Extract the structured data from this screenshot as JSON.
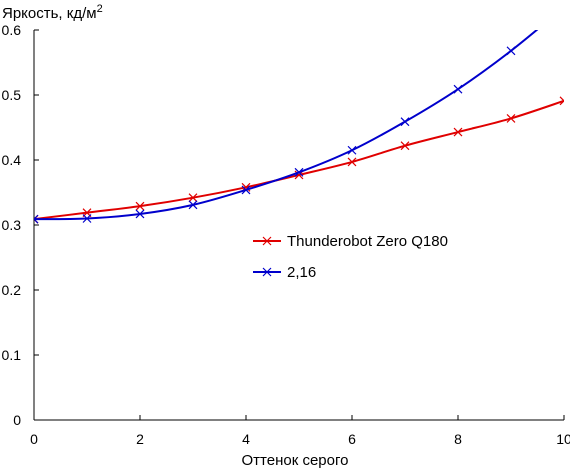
{
  "chart_data": {
    "type": "line",
    "title": "",
    "xlabel": "Оттенок серого",
    "ylabel": "Яркость, кд/м",
    "ylabel_sup": "2",
    "xlim": [
      0,
      10
    ],
    "ylim": [
      0,
      0.6
    ],
    "x_ticks": [
      "0",
      "2",
      "4",
      "6",
      "8",
      "10"
    ],
    "y_ticks": [
      "0",
      "0.1",
      "0.2",
      "0.3",
      "0.4",
      "0.5",
      "0.6"
    ],
    "x_tick_values": [
      0,
      2,
      4,
      6,
      8,
      10
    ],
    "y_tick_values": [
      0,
      0.1,
      0.2,
      0.3,
      0.4,
      0.5,
      0.6
    ],
    "grid": false,
    "legend_position": "center-right",
    "series": [
      {
        "name": "Thunderobot Zero Q180",
        "color": "#e00000",
        "marker": "x",
        "x": [
          0,
          1,
          2,
          3,
          4,
          5,
          6,
          7,
          8,
          9,
          10
        ],
        "y": [
          0.309,
          0.319,
          0.329,
          0.342,
          0.358,
          0.377,
          0.397,
          0.422,
          0.443,
          0.464,
          0.491
        ]
      },
      {
        "name": "2,16",
        "color": "#0000cc",
        "marker": "x",
        "x": [
          0,
          1,
          2,
          3,
          4,
          5,
          6,
          7,
          8,
          9,
          10
        ],
        "y": [
          0.309,
          0.31,
          0.317,
          0.331,
          0.354,
          0.381,
          0.415,
          0.459,
          0.509,
          0.568,
          0.635
        ],
        "clip_at_ylim": true
      }
    ]
  }
}
